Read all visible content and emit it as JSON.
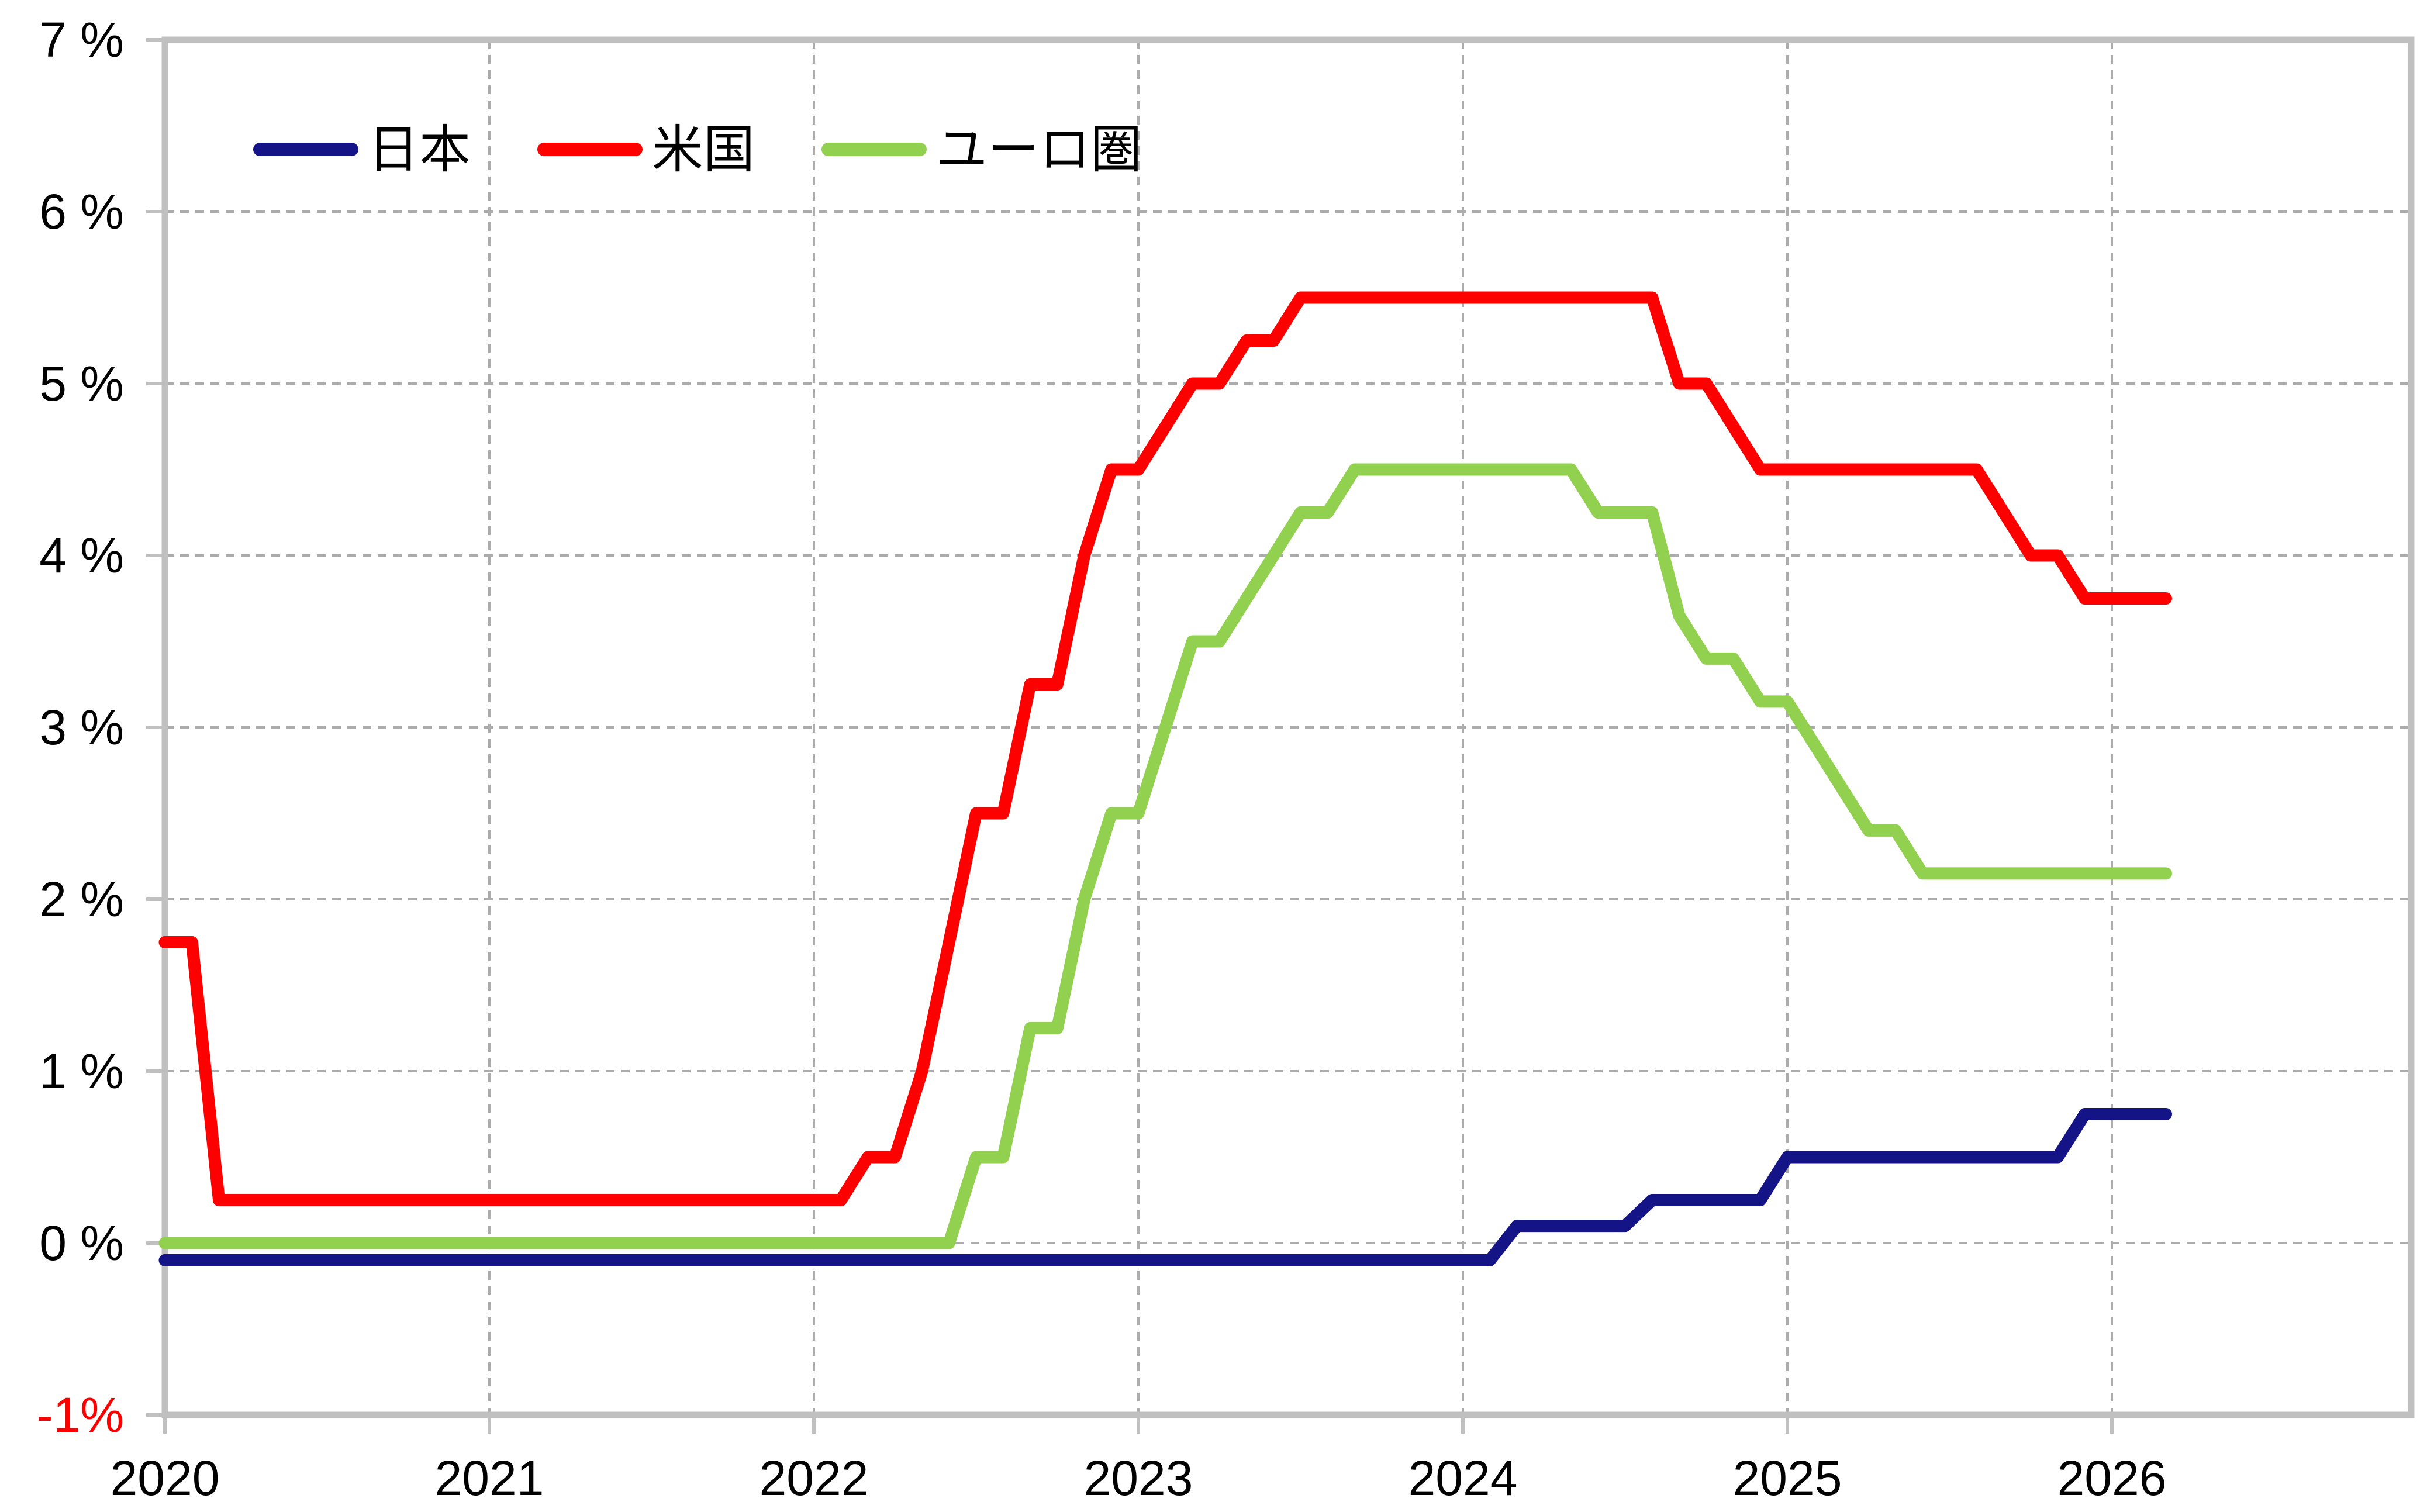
{
  "page": {
    "background": "#FFFFFF"
  },
  "chart_data": {
    "type": "line",
    "x_axis": {
      "tick_labels": [
        "2020",
        "2021",
        "2022",
        "2023",
        "2024",
        "2025",
        "2026"
      ],
      "start_month": "2020-01",
      "end_month": "2026-03",
      "granularity": "monthly"
    },
    "y_axis": {
      "unit": "%",
      "min": -1,
      "max": 7,
      "ticks": [
        {
          "label": "7 %",
          "value": 7,
          "color": "#000000"
        },
        {
          "label": "6 %",
          "value": 6,
          "color": "#000000"
        },
        {
          "label": "5 %",
          "value": 5,
          "color": "#000000"
        },
        {
          "label": "4 %",
          "value": 4,
          "color": "#000000"
        },
        {
          "label": "3 %",
          "value": 3,
          "color": "#000000"
        },
        {
          "label": "2 %",
          "value": 2,
          "color": "#000000"
        },
        {
          "label": "1 %",
          "value": 1,
          "color": "#000000"
        },
        {
          "label": "0 %",
          "value": 0,
          "color": "#000000"
        },
        {
          "label": "-1%",
          "value": -1,
          "color": "#FF0000"
        }
      ]
    },
    "grid": {
      "horizontal_dashed_at": [
        0,
        1,
        2,
        3,
        4,
        5,
        6
      ],
      "vertical_dashed_at_years": [
        2021,
        2022,
        2023,
        2024,
        2025,
        2026
      ],
      "grid_color": "#ACACAC",
      "border_color": "#C0C0C0"
    },
    "legend": {
      "position": "top-left-inside",
      "entries": [
        "日本",
        "米国",
        "ユーロ圏"
      ]
    },
    "series": [
      {
        "name": "日本",
        "color": "#141487",
        "values": [
          -0.1,
          -0.1,
          -0.1,
          -0.1,
          -0.1,
          -0.1,
          -0.1,
          -0.1,
          -0.1,
          -0.1,
          -0.1,
          -0.1,
          -0.1,
          -0.1,
          -0.1,
          -0.1,
          -0.1,
          -0.1,
          -0.1,
          -0.1,
          -0.1,
          -0.1,
          -0.1,
          -0.1,
          -0.1,
          -0.1,
          -0.1,
          -0.1,
          -0.1,
          -0.1,
          -0.1,
          -0.1,
          -0.1,
          -0.1,
          -0.1,
          -0.1,
          -0.1,
          -0.1,
          -0.1,
          -0.1,
          -0.1,
          -0.1,
          -0.1,
          -0.1,
          -0.1,
          -0.1,
          -0.1,
          -0.1,
          -0.1,
          -0.1,
          0.1,
          0.1,
          0.1,
          0.1,
          0.1,
          0.25,
          0.25,
          0.25,
          0.25,
          0.25,
          0.5,
          0.5,
          0.5,
          0.5,
          0.5,
          0.5,
          0.5,
          0.5,
          0.5,
          0.5,
          0.5,
          0.75,
          0.75,
          0.75,
          0.75
        ]
      },
      {
        "name": "米国",
        "color": "#FF0000",
        "values": [
          1.75,
          1.75,
          0.25,
          0.25,
          0.25,
          0.25,
          0.25,
          0.25,
          0.25,
          0.25,
          0.25,
          0.25,
          0.25,
          0.25,
          0.25,
          0.25,
          0.25,
          0.25,
          0.25,
          0.25,
          0.25,
          0.25,
          0.25,
          0.25,
          0.25,
          0.25,
          0.5,
          0.5,
          1.0,
          1.75,
          2.5,
          2.5,
          3.25,
          3.25,
          4.0,
          4.5,
          4.5,
          4.75,
          5.0,
          5.0,
          5.25,
          5.25,
          5.5,
          5.5,
          5.5,
          5.5,
          5.5,
          5.5,
          5.5,
          5.5,
          5.5,
          5.5,
          5.5,
          5.5,
          5.5,
          5.5,
          5.0,
          5.0,
          4.75,
          4.5,
          4.5,
          4.5,
          4.5,
          4.5,
          4.5,
          4.5,
          4.5,
          4.5,
          4.25,
          4.0,
          4.0,
          3.75,
          3.75,
          3.75,
          3.75
        ]
      },
      {
        "name": "ユーロ圏",
        "color": "#92D050",
        "values": [
          0.0,
          0.0,
          0.0,
          0.0,
          0.0,
          0.0,
          0.0,
          0.0,
          0.0,
          0.0,
          0.0,
          0.0,
          0.0,
          0.0,
          0.0,
          0.0,
          0.0,
          0.0,
          0.0,
          0.0,
          0.0,
          0.0,
          0.0,
          0.0,
          0.0,
          0.0,
          0.0,
          0.0,
          0.0,
          0.0,
          0.5,
          0.5,
          1.25,
          1.25,
          2.0,
          2.5,
          2.5,
          3.0,
          3.5,
          3.5,
          3.75,
          4.0,
          4.25,
          4.25,
          4.5,
          4.5,
          4.5,
          4.5,
          4.5,
          4.5,
          4.5,
          4.5,
          4.5,
          4.25,
          4.25,
          4.25,
          3.65,
          3.4,
          3.4,
          3.15,
          3.15,
          2.9,
          2.65,
          2.4,
          2.4,
          2.15,
          2.15,
          2.15,
          2.15,
          2.15,
          2.15,
          2.15,
          2.15,
          2.15,
          2.15
        ]
      }
    ]
  }
}
